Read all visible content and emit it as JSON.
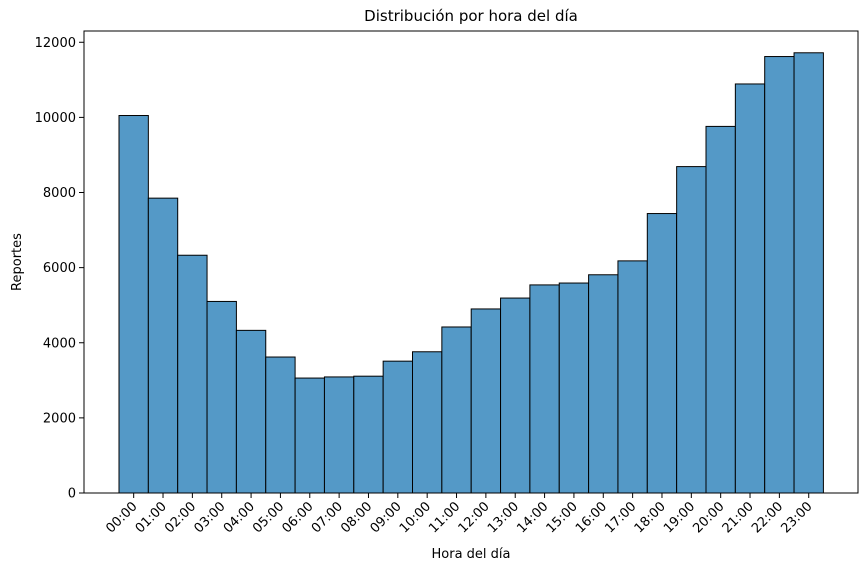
{
  "chart_data": {
    "type": "bar",
    "title": "Distribución por hora del día",
    "xlabel": "Hora del día",
    "ylabel": "Reportes",
    "ylim": [
      0,
      12300
    ],
    "yticks": [
      0,
      2000,
      4000,
      6000,
      8000,
      10000,
      12000
    ],
    "grid": false,
    "legend": "none",
    "bar_color": "#5499c7",
    "categories": [
      "00:00",
      "01:00",
      "02:00",
      "03:00",
      "04:00",
      "05:00",
      "06:00",
      "07:00",
      "08:00",
      "09:00",
      "10:00",
      "11:00",
      "12:00",
      "13:00",
      "14:00",
      "15:00",
      "16:00",
      "17:00",
      "18:00",
      "19:00",
      "20:00",
      "21:00",
      "22:00",
      "23:00"
    ],
    "values": [
      10050,
      7850,
      6330,
      5100,
      4330,
      3620,
      3060,
      3090,
      3110,
      3510,
      3760,
      4420,
      4900,
      5190,
      5540,
      5590,
      5810,
      6180,
      7440,
      8690,
      9760,
      10890,
      11620,
      11720
    ]
  }
}
